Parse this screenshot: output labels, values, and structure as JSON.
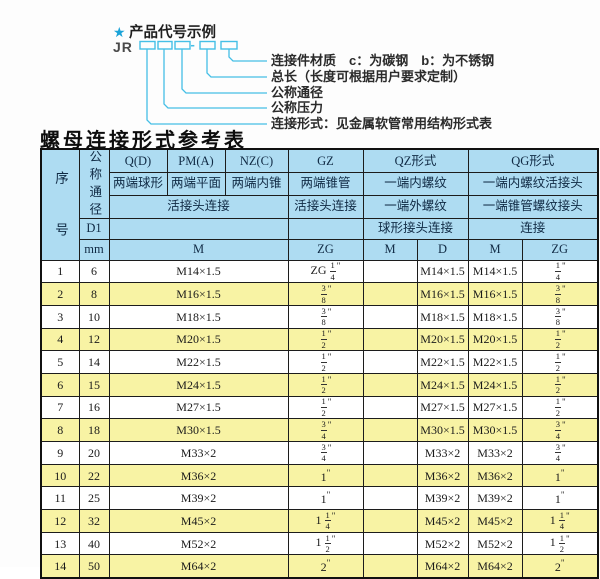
{
  "diagram": {
    "star": "★",
    "example_title": "产品代号示例",
    "code_prefix": "JR",
    "separator": "-",
    "labels": [
      "连接件材质　c：为碳钢　b：为不锈钢",
      "总长（长度可根据用户要求定制）",
      "公称通径",
      "公称压力",
      "连接形式：见金属软管常用结构形式表"
    ]
  },
  "table_title": "螺母连接形式参考表",
  "table": {
    "header": {
      "seq": "序号",
      "nominal_diameter": "公称通径",
      "d1": "D1",
      "unit": "mm",
      "forms": [
        "Q(D)",
        "PM(A)",
        "NZ(C)",
        "GZ",
        "QZ形式",
        "QG形式"
      ],
      "end_types": [
        "两端球形",
        "两端平面",
        "两端内锥",
        "两端锥管",
        "一端内螺纹",
        "一端内螺纹活接头"
      ],
      "connections": [
        "活接头连接",
        "活接头连接",
        "一端外螺纹",
        "一端锥管螺纹接头"
      ],
      "connections2": [
        "球形接头连接",
        "连接"
      ],
      "thread_units": [
        "M",
        "ZG",
        "M",
        "D",
        "M",
        "ZG"
      ]
    },
    "rows": [
      [
        "1",
        "6",
        "M14×1.5",
        "ZG 1/4\"",
        "",
        "M14×1.5",
        "M14×1.5",
        "1/4\""
      ],
      [
        "2",
        "8",
        "M16×1.5",
        "3/8\"",
        "",
        "M16×1.5",
        "M16×1.5",
        "3/8\""
      ],
      [
        "3",
        "10",
        "M18×1.5",
        "3/8\"",
        "",
        "M18×1.5",
        "M18×1.5",
        "3/8\""
      ],
      [
        "4",
        "12",
        "M20×1.5",
        "1/2\"",
        "",
        "M20×1.5",
        "M20×1.5",
        "1/2\""
      ],
      [
        "5",
        "14",
        "M22×1.5",
        "1/2\"",
        "",
        "M22×1.5",
        "M22×1.5",
        "1/2\""
      ],
      [
        "6",
        "15",
        "M24×1.5",
        "1/2\"",
        "",
        "M24×1.5",
        "M24×1.5",
        "1/2\""
      ],
      [
        "7",
        "16",
        "M27×1.5",
        "1/2\"",
        "",
        "M27×1.5",
        "M27×1.5",
        "1/2\""
      ],
      [
        "8",
        "18",
        "M30×1.5",
        "3/4\"",
        "",
        "M30×1.5",
        "M30×1.5",
        "3/4\""
      ],
      [
        "9",
        "20",
        "M33×2",
        "3/4\"",
        "",
        "M33×2",
        "M33×2",
        "3/4\""
      ],
      [
        "10",
        "22",
        "M36×2",
        "1\"",
        "",
        "M36×2",
        "M36×2",
        "1\""
      ],
      [
        "11",
        "25",
        "M39×2",
        "1\"",
        "",
        "M39×2",
        "M39×2",
        "1\""
      ],
      [
        "12",
        "32",
        "M45×2",
        "1 1/4\"",
        "",
        "M45×2",
        "M45×2",
        "1 1/4\""
      ],
      [
        "13",
        "40",
        "M52×2",
        "1 1/2\"",
        "",
        "M52×2",
        "M52×2",
        "1 1/2\""
      ],
      [
        "14",
        "50",
        "M64×2",
        "2\"",
        "",
        "M64×2",
        "M64×2",
        "2\""
      ]
    ]
  },
  "colors": {
    "header_blue": "#aedcf2",
    "row_yellow": "#f8f3a4",
    "accent_cyan": "#45bfe6",
    "border": "#1c1c1c"
  }
}
